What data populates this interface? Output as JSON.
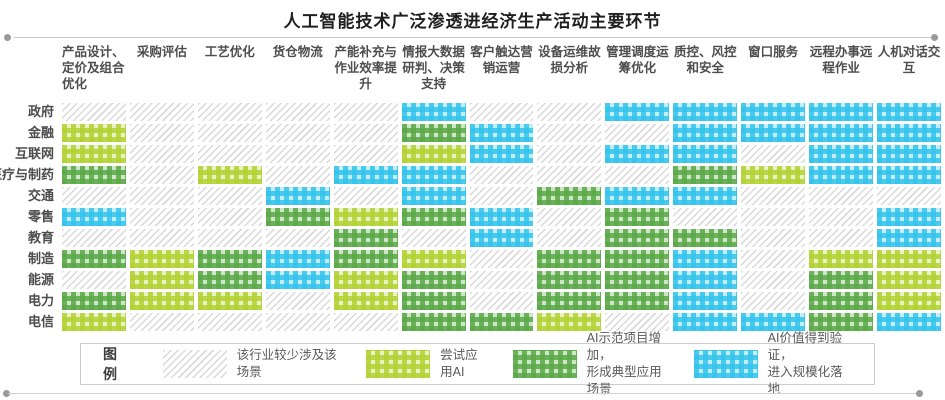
{
  "title": "人工智能技术广泛渗透进经济生产活动主要环节",
  "colors": {
    "none": "#d9d9d9",
    "trial": "#b2d233",
    "demo": "#5aa847",
    "scale": "#33c3ec",
    "title_text": "#1f1f1f",
    "label_text": "#4d4d4d",
    "divider": "#c9c9c9"
  },
  "legend": {
    "label": "图例",
    "items": [
      {
        "key": "none",
        "label": "该行业较少涉及该场景"
      },
      {
        "key": "trial",
        "label": "尝试应用AI"
      },
      {
        "key": "demo",
        "label": "AI示范项目增加，\n形成典型应用场景"
      },
      {
        "key": "scale",
        "label": "AI价值得到验证，\n进入规模化落地"
      }
    ]
  },
  "chart_data": {
    "type": "heatmap",
    "title": "人工智能技术广泛渗透进经济生产活动主要环节",
    "columns": [
      "产品设计、定价及组合优化",
      "采购评估",
      "工艺优化",
      "货仓物流",
      "产能补充与作业效率提升",
      "情报大数据研判、决策支持",
      "客户触达营销运营",
      "设备运维故损分析",
      "管理调度运筹优化",
      "质控、风控和安全",
      "窗口服务",
      "远程办事远程作业",
      "人机对话交互"
    ],
    "rows": [
      "政府",
      "金融",
      "互联网",
      "医疗与制药",
      "交通",
      "零售",
      "教育",
      "制造",
      "能源",
      "电力",
      "电信"
    ],
    "levels": [
      {
        "code": 0,
        "key": "none",
        "label": "该行业较少涉及该场景"
      },
      {
        "code": 1,
        "key": "trial",
        "label": "尝试应用AI"
      },
      {
        "code": 2,
        "key": "demo",
        "label": "AI示范项目增加，形成典型应用场景"
      },
      {
        "code": 3,
        "key": "scale",
        "label": "AI价值得到验证，进入规模化落地"
      }
    ],
    "matrix": [
      [
        0,
        0,
        0,
        0,
        0,
        3,
        0,
        0,
        3,
        3,
        3,
        3,
        3
      ],
      [
        1,
        0,
        0,
        0,
        0,
        2,
        3,
        0,
        0,
        3,
        3,
        3,
        3
      ],
      [
        1,
        0,
        0,
        0,
        0,
        1,
        3,
        0,
        3,
        3,
        0,
        3,
        3
      ],
      [
        2,
        0,
        1,
        0,
        3,
        3,
        0,
        0,
        0,
        2,
        1,
        3,
        3
      ],
      [
        0,
        0,
        0,
        3,
        0,
        3,
        0,
        2,
        3,
        3,
        0,
        0,
        0
      ],
      [
        3,
        0,
        0,
        2,
        1,
        2,
        3,
        0,
        2,
        0,
        0,
        0,
        3
      ],
      [
        0,
        0,
        0,
        0,
        2,
        0,
        3,
        0,
        2,
        2,
        0,
        0,
        3
      ],
      [
        2,
        1,
        2,
        3,
        2,
        1,
        0,
        2,
        2,
        3,
        0,
        1,
        1
      ],
      [
        0,
        1,
        2,
        3,
        1,
        2,
        0,
        2,
        2,
        3,
        0,
        2,
        1
      ],
      [
        2,
        1,
        1,
        0,
        1,
        2,
        0,
        2,
        2,
        3,
        0,
        2,
        1
      ],
      [
        1,
        0,
        0,
        0,
        0,
        2,
        2,
        1,
        0,
        3,
        3,
        2,
        3
      ]
    ]
  }
}
